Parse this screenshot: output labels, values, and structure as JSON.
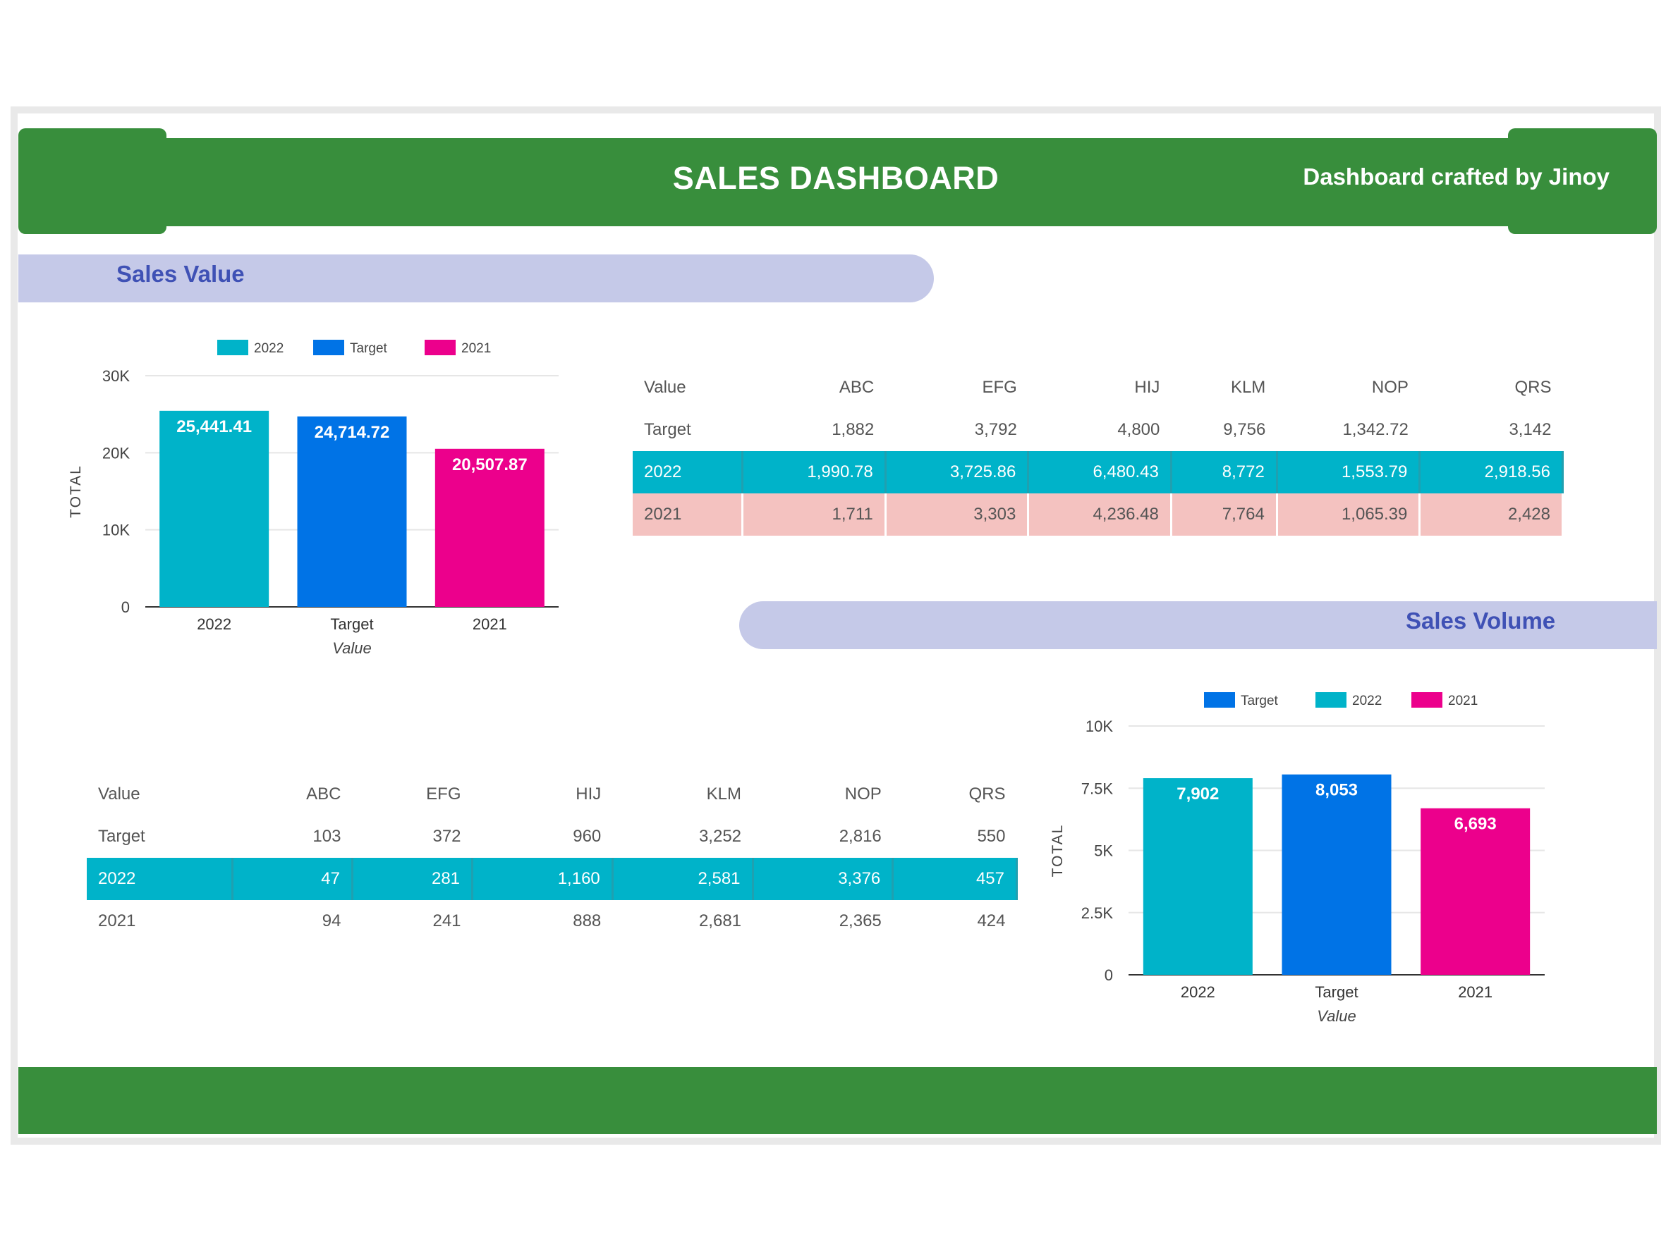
{
  "header": {
    "title": "SALES DASHBOARD",
    "credit": "Dashboard crafted by Jinoy"
  },
  "sections": {
    "sales_value_label": "Sales Value",
    "sales_volume_label": "Sales Volume"
  },
  "colors": {
    "green": "#388e3c",
    "teal": "#00b3c9",
    "blue": "#0073e6",
    "magenta": "#ec008c",
    "pill": "#c5c9e8",
    "pink_row": "#f4c2c0"
  },
  "chart_data": [
    {
      "type": "bar",
      "categories": [
        "2022",
        "Target",
        "2021"
      ],
      "values": [
        25441.41,
        24714.72,
        20507.87
      ],
      "value_labels": [
        "25,441.41",
        "24,714.72",
        "20,507.87"
      ],
      "colors": [
        "#00b3c9",
        "#0073e6",
        "#ec008c"
      ],
      "legend": [
        "2022",
        "Target",
        "2021"
      ],
      "legend_colors": [
        "#00b3c9",
        "#0073e6",
        "#ec008c"
      ],
      "xlabel": "Value",
      "ylabel": "TOTAL",
      "ylim": [
        0,
        30000
      ],
      "yticks": [
        0,
        10000,
        20000,
        30000
      ],
      "ytick_labels": [
        "0",
        "10K",
        "20K",
        "30K"
      ],
      "grid": true,
      "legend_position": "top"
    },
    {
      "type": "bar",
      "categories": [
        "2022",
        "Target",
        "2021"
      ],
      "values": [
        7902,
        8053,
        6693
      ],
      "value_labels": [
        "7,902",
        "8,053",
        "6,693"
      ],
      "colors": [
        "#00b3c9",
        "#0073e6",
        "#ec008c"
      ],
      "legend": [
        "Target",
        "2022",
        "2021"
      ],
      "legend_colors": [
        "#0073e6",
        "#00b3c9",
        "#ec008c"
      ],
      "xlabel": "Value",
      "ylabel": "TOTAL",
      "ylim": [
        0,
        10000
      ],
      "yticks": [
        0,
        2500,
        5000,
        7500,
        10000
      ],
      "ytick_labels": [
        "0",
        "2.5K",
        "5K",
        "7.5K",
        "10K"
      ],
      "grid": true,
      "legend_position": "top"
    }
  ],
  "value_table": {
    "headers": [
      "Value",
      "ABC",
      "EFG",
      "HIJ",
      "KLM",
      "NOP",
      "QRS"
    ],
    "rows": [
      [
        "Target",
        "1,882",
        "3,792",
        "4,800",
        "9,756",
        "1,342.72",
        "3,142"
      ],
      [
        "2022",
        "1,990.78",
        "3,725.86",
        "6,480.43",
        "8,772",
        "1,553.79",
        "2,918.56"
      ],
      [
        "2021",
        "1,711",
        "3,303",
        "4,236.48",
        "7,764",
        "1,065.39",
        "2,428"
      ]
    ]
  },
  "volume_table": {
    "headers": [
      "Value",
      "ABC",
      "EFG",
      "HIJ",
      "KLM",
      "NOP",
      "QRS"
    ],
    "rows": [
      [
        "Target",
        "103",
        "372",
        "960",
        "3,252",
        "2,816",
        "550"
      ],
      [
        "2022",
        "47",
        "281",
        "1,160",
        "2,581",
        "3,376",
        "457"
      ],
      [
        "2021",
        "94",
        "241",
        "888",
        "2,681",
        "2,365",
        "424"
      ]
    ]
  }
}
